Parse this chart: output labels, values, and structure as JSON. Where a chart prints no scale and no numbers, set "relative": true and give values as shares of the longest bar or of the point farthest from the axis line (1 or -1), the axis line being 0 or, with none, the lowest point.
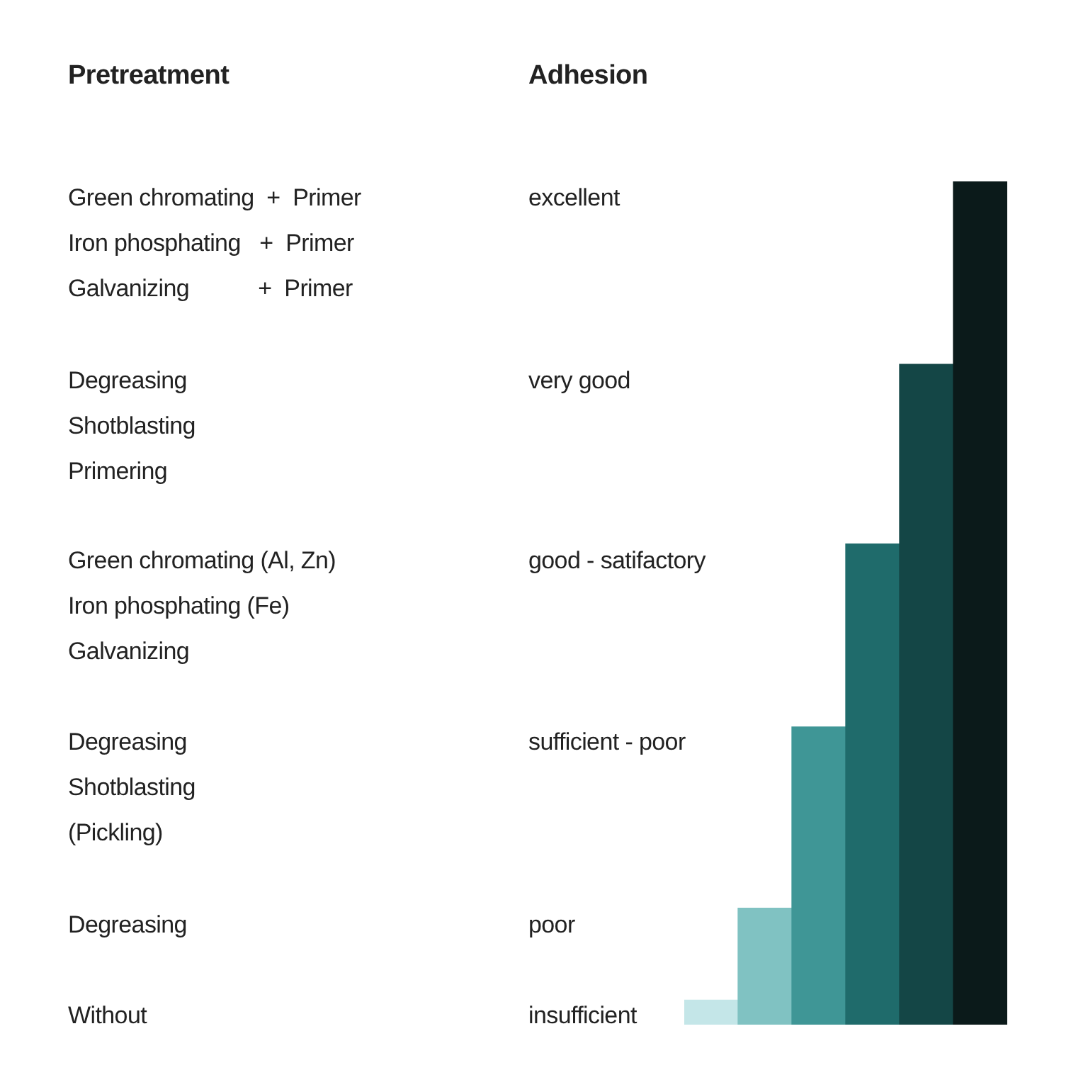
{
  "chart_data": {
    "type": "bar",
    "relative": true,
    "categories": [
      null,
      null,
      null,
      null,
      null,
      null
    ],
    "values": [
      0.029,
      0.138,
      0.353,
      0.57,
      0.783,
      1
    ],
    "colors": [
      "#c4e6e8",
      "#80c2c2",
      "#3f9696",
      "#1f6b6b",
      "#144646",
      "#0b1a1a"
    ],
    "legend": false,
    "annotations": [
      "Pretreatment",
      "Adhesion",
      "Green chromating  +  Primer\nIron phosphating   +  Primer\nGalvanizing           +  Primer",
      "excellent",
      "Degreasing\nShotblasting\nPrimering",
      "very good",
      "Green chromating (Al, Zn)\nIron phosphating (Fe)\nGalvanizing",
      "good - satifactory",
      "Degreasing\nShotblasting\n(Pickling)",
      "sufficient - poor",
      "Degreasing",
      "poor",
      "Without",
      "insufficient"
    ]
  }
}
